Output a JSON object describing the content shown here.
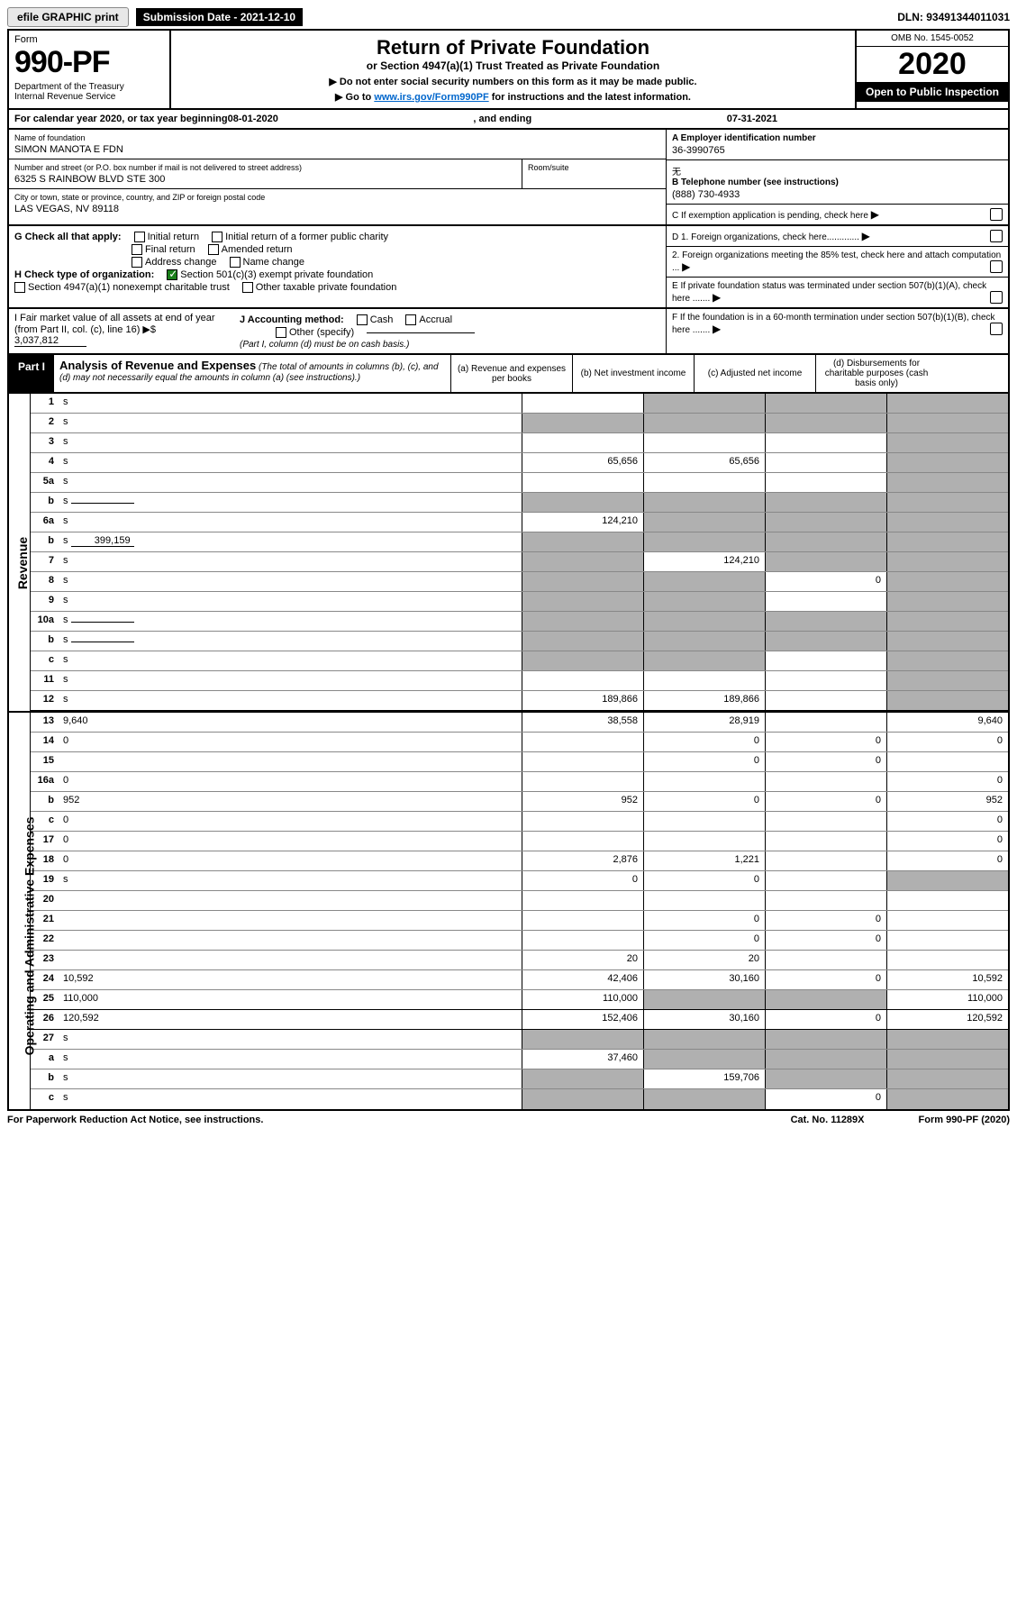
{
  "topbar": {
    "efile": "efile GRAPHIC print",
    "subdate_label": "Submission Date - 2021-12-10",
    "dln": "DLN: 93491344011031"
  },
  "header": {
    "form_word": "Form",
    "form_num": "990-PF",
    "dept": "Department of the Treasury\nInternal Revenue Service",
    "title": "Return of Private Foundation",
    "subtitle": "or Section 4947(a)(1) Trust Treated as Private Foundation",
    "note1": "▶ Do not enter social security numbers on this form as it may be made public.",
    "note2_pre": "▶ Go to ",
    "note2_link": "www.irs.gov/Form990PF",
    "note2_post": " for instructions and the latest information.",
    "omb": "OMB No. 1545-0052",
    "year": "2020",
    "open": "Open to Public Inspection"
  },
  "calyear": {
    "pre": "For calendar year 2020, or tax year beginning ",
    "begin": "08-01-2020",
    "mid": " , and ending ",
    "end": "07-31-2021"
  },
  "info": {
    "name_label": "Name of foundation",
    "name": "SIMON MANOTA E FDN",
    "addr_label": "Number and street (or P.O. box number if mail is not delivered to street address)",
    "addr": "6325 S RAINBOW BLVD STE 300",
    "room_label": "Room/suite",
    "city_label": "City or town, state or province, country, and ZIP or foreign postal code",
    "city": "LAS VEGAS, NV  89118",
    "ein_label": "A Employer identification number",
    "ein": "36-3990765",
    "tel_label": "B Telephone number (see instructions)",
    "tel": "(888) 730-4933",
    "c": "C If exemption application is pending, check here",
    "d1": "D 1. Foreign organizations, check here.............",
    "d2": "2. Foreign organizations meeting the 85% test, check here and attach computation ...",
    "e": "E If private foundation status was terminated under section 507(b)(1)(A), check here .......",
    "f": "F If the foundation is in a 60-month termination under section 507(b)(1)(B), check here .......",
    "g_label": "G Check all that apply:",
    "g_opts": [
      "Initial return",
      "Initial return of a former public charity",
      "Final return",
      "Amended return",
      "Address change",
      "Name change"
    ],
    "h_label": "H Check type of organization:",
    "h1": "Section 501(c)(3) exempt private foundation",
    "h2": "Section 4947(a)(1) nonexempt charitable trust",
    "h3": "Other taxable private foundation",
    "i_label": "I Fair market value of all assets at end of year (from Part II, col. (c), line 16)",
    "i_val": "3,037,812",
    "j_label": "J Accounting method:",
    "j_opts": [
      "Cash",
      "Accrual"
    ],
    "j_other": "Other (specify)",
    "j_note": "(Part I, column (d) must be on cash basis.)"
  },
  "part1": {
    "tag": "Part I",
    "title": "Analysis of Revenue and Expenses",
    "note": " (The total of amounts in columns (b), (c), and (d) may not necessarily equal the amounts in column (a) (see instructions).)",
    "cols": {
      "a": "(a) Revenue and expenses per books",
      "b": "(b) Net investment income",
      "c": "(c) Adjusted net income",
      "d": "(d) Disbursements for charitable purposes (cash basis only)"
    }
  },
  "sections": {
    "revenue": "Revenue",
    "opex": "Operating and Administrative Expenses"
  },
  "rows": [
    {
      "n": "1",
      "d": "s",
      "a": "",
      "b": "s",
      "c": "s"
    },
    {
      "n": "2",
      "d": "s",
      "a": "s",
      "b": "s",
      "c": "s"
    },
    {
      "n": "3",
      "d": "s",
      "a": "",
      "b": "",
      "c": ""
    },
    {
      "n": "4",
      "d": "s",
      "a": "65,656",
      "b": "65,656",
      "c": ""
    },
    {
      "n": "5a",
      "d": "s",
      "a": "",
      "b": "",
      "c": ""
    },
    {
      "n": "b",
      "d": "s",
      "inline": "",
      "a": "s",
      "b": "s",
      "c": "s"
    },
    {
      "n": "6a",
      "d": "s",
      "a": "124,210",
      "b": "s",
      "c": "s"
    },
    {
      "n": "b",
      "d": "s",
      "inline": "399,159",
      "a": "s",
      "b": "s",
      "c": "s"
    },
    {
      "n": "7",
      "d": "s",
      "a": "s",
      "b": "124,210",
      "c": "s"
    },
    {
      "n": "8",
      "d": "s",
      "a": "s",
      "b": "s",
      "c": "0"
    },
    {
      "n": "9",
      "d": "s",
      "a": "s",
      "b": "s",
      "c": ""
    },
    {
      "n": "10a",
      "d": "s",
      "inline": "",
      "a": "s",
      "b": "s",
      "c": "s"
    },
    {
      "n": "b",
      "d": "s",
      "inline": "",
      "a": "s",
      "b": "s",
      "c": "s"
    },
    {
      "n": "c",
      "d": "s",
      "a": "s",
      "b": "s",
      "c": ""
    },
    {
      "n": "11",
      "d": "s",
      "a": "",
      "b": "",
      "c": ""
    },
    {
      "n": "12",
      "d": "s",
      "a": "189,866",
      "b": "189,866",
      "c": "",
      "solid": true
    },
    {
      "n": "13",
      "d": "9,640",
      "a": "38,558",
      "b": "28,919",
      "c": ""
    },
    {
      "n": "14",
      "d": "0",
      "a": "",
      "b": "0",
      "c": "0"
    },
    {
      "n": "15",
      "d": "",
      "a": "",
      "b": "0",
      "c": "0"
    },
    {
      "n": "16a",
      "d": "0",
      "a": "",
      "b": "",
      "c": ""
    },
    {
      "n": "b",
      "d": "952",
      "a": "952",
      "b": "0",
      "c": "0"
    },
    {
      "n": "c",
      "d": "0",
      "a": "",
      "b": "",
      "c": ""
    },
    {
      "n": "17",
      "d": "0",
      "a": "",
      "b": "",
      "c": ""
    },
    {
      "n": "18",
      "d": "0",
      "a": "2,876",
      "b": "1,221",
      "c": ""
    },
    {
      "n": "19",
      "d": "s",
      "a": "0",
      "b": "0",
      "c": ""
    },
    {
      "n": "20",
      "d": "",
      "a": "",
      "b": "",
      "c": ""
    },
    {
      "n": "21",
      "d": "",
      "a": "",
      "b": "0",
      "c": "0"
    },
    {
      "n": "22",
      "d": "",
      "a": "",
      "b": "0",
      "c": "0"
    },
    {
      "n": "23",
      "d": "",
      "a": "20",
      "b": "20",
      "c": ""
    },
    {
      "n": "24",
      "d": "10,592",
      "a": "42,406",
      "b": "30,160",
      "c": "0"
    },
    {
      "n": "25",
      "d": "110,000",
      "a": "110,000",
      "b": "s",
      "c": "s",
      "solid": true
    },
    {
      "n": "26",
      "d": "120,592",
      "a": "152,406",
      "b": "30,160",
      "c": "0",
      "solid": true
    },
    {
      "n": "27",
      "d": "s",
      "a": "s",
      "b": "s",
      "c": "s"
    },
    {
      "n": "a",
      "d": "s",
      "a": "37,460",
      "b": "s",
      "c": "s"
    },
    {
      "n": "b",
      "d": "s",
      "a": "s",
      "b": "159,706",
      "c": "s"
    },
    {
      "n": "c",
      "d": "s",
      "a": "s",
      "b": "s",
      "c": "0"
    }
  ],
  "footer": {
    "left": "For Paperwork Reduction Act Notice, see instructions.",
    "mid": "Cat. No. 11289X",
    "right": "Form 990-PF (2020)"
  }
}
